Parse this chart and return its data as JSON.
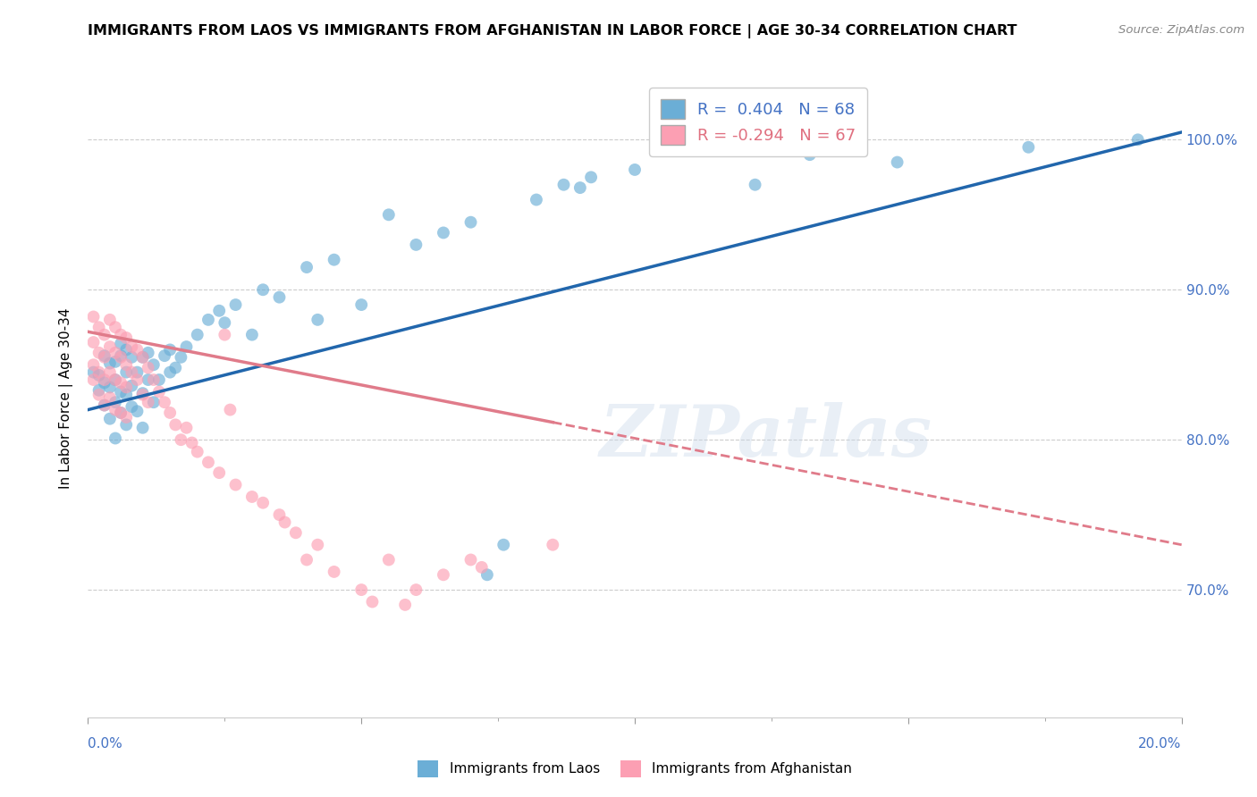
{
  "title": "IMMIGRANTS FROM LAOS VS IMMIGRANTS FROM AFGHANISTAN IN LABOR FORCE | AGE 30-34 CORRELATION CHART",
  "source": "Source: ZipAtlas.com",
  "ylabel": "In Labor Force | Age 30-34",
  "x_min": 0.0,
  "x_max": 0.2,
  "y_min": 0.615,
  "y_max": 1.04,
  "right_yticks": [
    0.7,
    0.8,
    0.9,
    1.0
  ],
  "right_yticklabels": [
    "70.0%",
    "80.0%",
    "90.0%",
    "100.0%"
  ],
  "laos_color": "#6baed6",
  "afghanistan_color": "#fc9fb3",
  "laos_trend_color": "#2166ac",
  "afghanistan_trend_color": "#e07b8a",
  "laos_R": 0.404,
  "laos_N": 68,
  "afghanistan_R": -0.294,
  "afghanistan_N": 67,
  "legend_label_laos": "Immigrants from Laos",
  "legend_label_afghanistan": "Immigrants from Afghanistan",
  "watermark": "ZIPatlas",
  "laos_scatter_x": [
    0.001,
    0.002,
    0.002,
    0.003,
    0.003,
    0.003,
    0.004,
    0.004,
    0.004,
    0.005,
    0.005,
    0.005,
    0.005,
    0.006,
    0.006,
    0.006,
    0.006,
    0.007,
    0.007,
    0.007,
    0.007,
    0.008,
    0.008,
    0.008,
    0.009,
    0.009,
    0.01,
    0.01,
    0.01,
    0.011,
    0.011,
    0.012,
    0.012,
    0.013,
    0.014,
    0.015,
    0.015,
    0.016,
    0.017,
    0.018,
    0.02,
    0.022,
    0.024,
    0.025,
    0.027,
    0.03,
    0.032,
    0.035,
    0.04,
    0.042,
    0.045,
    0.05,
    0.055,
    0.06,
    0.065,
    0.07,
    0.073,
    0.076,
    0.082,
    0.087,
    0.09,
    0.092,
    0.1,
    0.122,
    0.132,
    0.148,
    0.172,
    0.192
  ],
  "laos_scatter_y": [
    0.845,
    0.833,
    0.843,
    0.823,
    0.838,
    0.856,
    0.814,
    0.835,
    0.851,
    0.801,
    0.825,
    0.84,
    0.852,
    0.818,
    0.832,
    0.856,
    0.864,
    0.81,
    0.83,
    0.845,
    0.86,
    0.822,
    0.836,
    0.855,
    0.819,
    0.845,
    0.808,
    0.831,
    0.855,
    0.84,
    0.858,
    0.825,
    0.85,
    0.84,
    0.856,
    0.845,
    0.86,
    0.848,
    0.855,
    0.862,
    0.87,
    0.88,
    0.886,
    0.878,
    0.89,
    0.87,
    0.9,
    0.895,
    0.915,
    0.88,
    0.92,
    0.89,
    0.95,
    0.93,
    0.938,
    0.945,
    0.71,
    0.73,
    0.96,
    0.97,
    0.968,
    0.975,
    0.98,
    0.97,
    0.99,
    0.985,
    0.995,
    1.0
  ],
  "afghanistan_scatter_x": [
    0.001,
    0.001,
    0.001,
    0.001,
    0.002,
    0.002,
    0.002,
    0.002,
    0.003,
    0.003,
    0.003,
    0.003,
    0.004,
    0.004,
    0.004,
    0.004,
    0.005,
    0.005,
    0.005,
    0.005,
    0.006,
    0.006,
    0.006,
    0.006,
    0.007,
    0.007,
    0.007,
    0.007,
    0.008,
    0.008,
    0.009,
    0.009,
    0.01,
    0.01,
    0.011,
    0.011,
    0.012,
    0.013,
    0.014,
    0.015,
    0.016,
    0.017,
    0.018,
    0.019,
    0.02,
    0.022,
    0.024,
    0.025,
    0.026,
    0.027,
    0.03,
    0.032,
    0.035,
    0.036,
    0.038,
    0.04,
    0.042,
    0.045,
    0.05,
    0.052,
    0.055,
    0.058,
    0.06,
    0.065,
    0.07,
    0.072,
    0.085
  ],
  "afghanistan_scatter_y": [
    0.882,
    0.865,
    0.85,
    0.84,
    0.875,
    0.858,
    0.845,
    0.83,
    0.87,
    0.855,
    0.84,
    0.823,
    0.88,
    0.862,
    0.845,
    0.828,
    0.875,
    0.858,
    0.84,
    0.82,
    0.87,
    0.855,
    0.838,
    0.818,
    0.868,
    0.85,
    0.835,
    0.815,
    0.862,
    0.845,
    0.86,
    0.84,
    0.855,
    0.83,
    0.848,
    0.825,
    0.84,
    0.832,
    0.825,
    0.818,
    0.81,
    0.8,
    0.808,
    0.798,
    0.792,
    0.785,
    0.778,
    0.87,
    0.82,
    0.77,
    0.762,
    0.758,
    0.75,
    0.745,
    0.738,
    0.72,
    0.73,
    0.712,
    0.7,
    0.692,
    0.72,
    0.69,
    0.7,
    0.71,
    0.72,
    0.715,
    0.73
  ],
  "laos_trend_x0": 0.0,
  "laos_trend_x1": 0.2,
  "laos_trend_y0": 0.82,
  "laos_trend_y1": 1.005,
  "afg_trend_x0": 0.0,
  "afg_trend_x1": 0.2,
  "afg_trend_y0": 0.872,
  "afg_trend_y1": 0.73,
  "afg_trend_solid_x1": 0.085,
  "afg_trend_dashed_x0": 0.085
}
